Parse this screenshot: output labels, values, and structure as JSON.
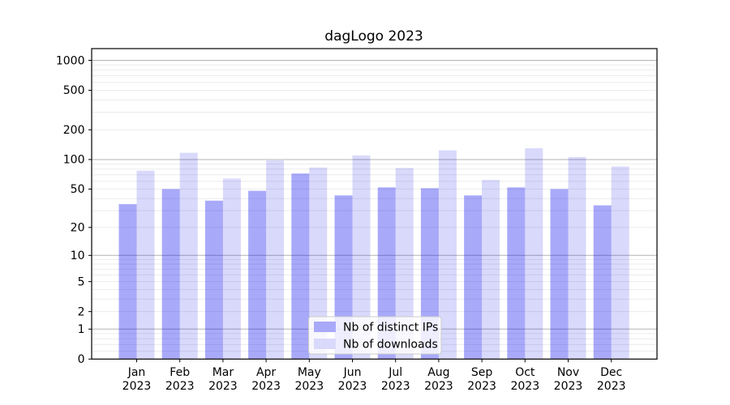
{
  "chart_data": {
    "type": "bar",
    "title": "dagLogo 2023",
    "categories": [
      "Jan",
      "Feb",
      "Mar",
      "Apr",
      "May",
      "Jun",
      "Jul",
      "Aug",
      "Sep",
      "Oct",
      "Nov",
      "Dec"
    ],
    "x_tick_year": "2023",
    "series": [
      {
        "name": "Nb of distinct IPs",
        "color": "#a9a9fa",
        "values": [
          35,
          50,
          38,
          48,
          72,
          43,
          52,
          51,
          43,
          52,
          50,
          34
        ]
      },
      {
        "name": "Nb of downloads",
        "color": "#d9d9fb",
        "values": [
          77,
          117,
          64,
          98,
          83,
          110,
          82,
          124,
          62,
          130,
          106,
          85
        ]
      }
    ],
    "xlabel": "",
    "ylabel": "",
    "y_ticks": [
      0,
      1,
      2,
      5,
      10,
      20,
      50,
      100,
      200,
      500,
      1000
    ],
    "ylim": [
      0,
      1000
    ],
    "y_scale": "log10(1+value)",
    "grid": true,
    "legend_position": "bottom-center",
    "colors": {
      "grid_major": "#b3b3b3",
      "grid_minor": "#ebebeb",
      "axis": "#000000",
      "legend_border": "#cccccc",
      "legend_bg": "rgba(255,255,255,0.8)"
    }
  }
}
